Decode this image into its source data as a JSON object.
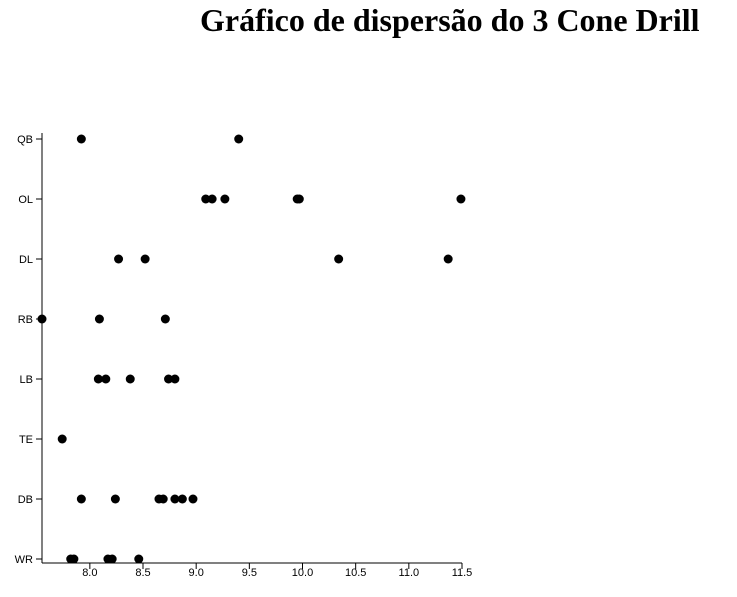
{
  "chart_data": {
    "type": "scatter",
    "title": "Gráfico de dispersão do 3 Cone Drill",
    "xlabel": "",
    "ylabel": "",
    "xlim": [
      7.55,
      11.5
    ],
    "x_ticks": [
      "8.0",
      "8.5",
      "9.0",
      "9.5",
      "10.0",
      "10.5",
      "11.0",
      "11.5"
    ],
    "categories": [
      "QB",
      "OL",
      "DL",
      "RB",
      "LB",
      "TE",
      "DB",
      "WR"
    ],
    "grid": false,
    "points": [
      {
        "category": "QB",
        "x": 7.92
      },
      {
        "category": "QB",
        "x": 9.4
      },
      {
        "category": "OL",
        "x": 9.09
      },
      {
        "category": "OL",
        "x": 9.15
      },
      {
        "category": "OL",
        "x": 9.27
      },
      {
        "category": "OL",
        "x": 9.95
      },
      {
        "category": "OL",
        "x": 9.97
      },
      {
        "category": "OL",
        "x": 11.49
      },
      {
        "category": "DL",
        "x": 8.27
      },
      {
        "category": "DL",
        "x": 8.52
      },
      {
        "category": "DL",
        "x": 10.34
      },
      {
        "category": "DL",
        "x": 11.37
      },
      {
        "category": "RB",
        "x": 7.55
      },
      {
        "category": "RB",
        "x": 8.09
      },
      {
        "category": "RB",
        "x": 8.71
      },
      {
        "category": "LB",
        "x": 8.08
      },
      {
        "category": "LB",
        "x": 8.15
      },
      {
        "category": "LB",
        "x": 8.38
      },
      {
        "category": "LB",
        "x": 8.74
      },
      {
        "category": "LB",
        "x": 8.8
      },
      {
        "category": "TE",
        "x": 7.74
      },
      {
        "category": "DB",
        "x": 7.92
      },
      {
        "category": "DB",
        "x": 8.24
      },
      {
        "category": "DB",
        "x": 8.65
      },
      {
        "category": "DB",
        "x": 8.69
      },
      {
        "category": "DB",
        "x": 8.8
      },
      {
        "category": "DB",
        "x": 8.87
      },
      {
        "category": "DB",
        "x": 8.97
      },
      {
        "category": "WR",
        "x": 7.82
      },
      {
        "category": "WR",
        "x": 7.85
      },
      {
        "category": "WR",
        "x": 8.17
      },
      {
        "category": "WR",
        "x": 8.21
      },
      {
        "category": "WR",
        "x": 8.46
      }
    ],
    "marker_color": "#000000"
  }
}
